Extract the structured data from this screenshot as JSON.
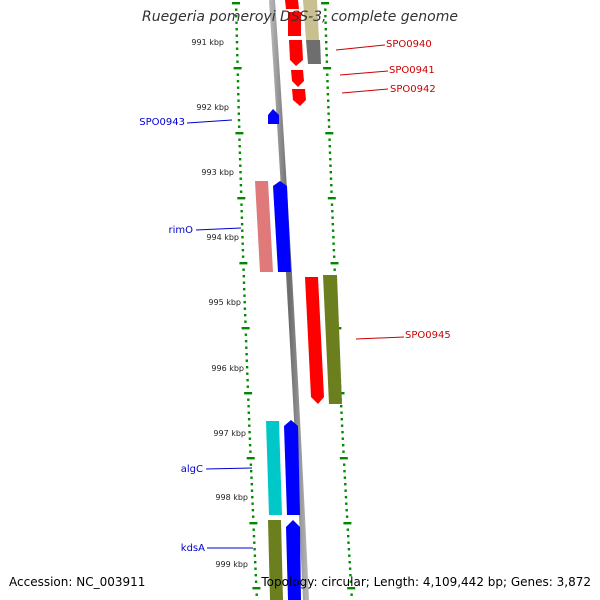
{
  "title": "Ruegeria pomeroyi DSS-3, complete genome",
  "footer": {
    "accession": "Accession: NC_003911",
    "info": "Topology: circular; Length: 4,109,442 bp; Genes: 3,872"
  },
  "scale_labels": [
    "991 kbp",
    "992 kbp",
    "993 kbp",
    "994 kbp",
    "995 kbp",
    "996 kbp",
    "997 kbp",
    "998 kbp",
    "999 kbp"
  ],
  "left_gene_labels": [
    "SPO0943",
    "rimO",
    "algC",
    "kdsA"
  ],
  "right_gene_labels": [
    "SPO0940",
    "SPO0941",
    "SPO0942",
    "SPO0945"
  ],
  "colors": {
    "scale_ticks": "#008800",
    "backbone": "#888888",
    "left_label": "#0000cc",
    "right_label": "#cc0000",
    "red": "#ff0000",
    "blue": "#0000ff",
    "olive": "#6b7f1f",
    "pink": "#e07a7a",
    "cyan": "#00c8c8",
    "gray": "#6e6e6e",
    "khaki": "#c8c090"
  }
}
